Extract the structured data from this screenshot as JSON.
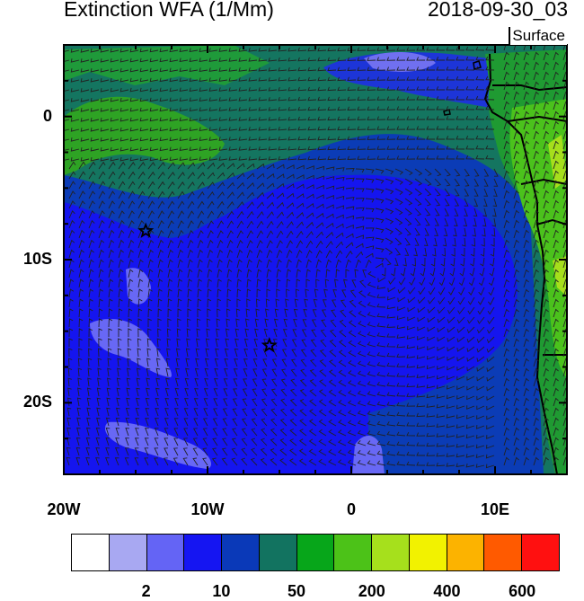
{
  "header": {
    "title": "Extinction WFA (1/Mm)",
    "datetime": "2018-09-30_03",
    "level": "Surface"
  },
  "map": {
    "lon_range": [
      -20,
      15
    ],
    "lat_range": [
      -25,
      5
    ],
    "x_ticks": [
      {
        "lon": -20,
        "label": "20W"
      },
      {
        "lon": -10,
        "label": "10W"
      },
      {
        "lon": 0,
        "label": "0"
      },
      {
        "lon": 10,
        "label": "10E"
      }
    ],
    "y_ticks": [
      {
        "lat": 0,
        "label": "0"
      },
      {
        "lat": -10,
        "label": "10S"
      },
      {
        "lat": -20,
        "label": "20S"
      }
    ],
    "markers": [
      {
        "name": "star",
        "lon": -14.3,
        "lat": -8.0
      },
      {
        "name": "star",
        "lon": -5.7,
        "lat": -16.0
      }
    ]
  },
  "colorbar": {
    "colors": [
      "#ffffff",
      "#a8a8f2",
      "#6464f5",
      "#1515f2",
      "#0a39b8",
      "#127360",
      "#07a61a",
      "#4cc218",
      "#a6e01c",
      "#f2f200",
      "#fcb300",
      "#ff5a00",
      "#ff1010"
    ],
    "labels": [
      {
        "index": 1,
        "text": "2"
      },
      {
        "index": 3,
        "text": "10"
      },
      {
        "index": 5,
        "text": "50"
      },
      {
        "index": 7,
        "text": "200"
      },
      {
        "index": 9,
        "text": "400"
      },
      {
        "index": 11,
        "text": "600"
      }
    ]
  }
}
